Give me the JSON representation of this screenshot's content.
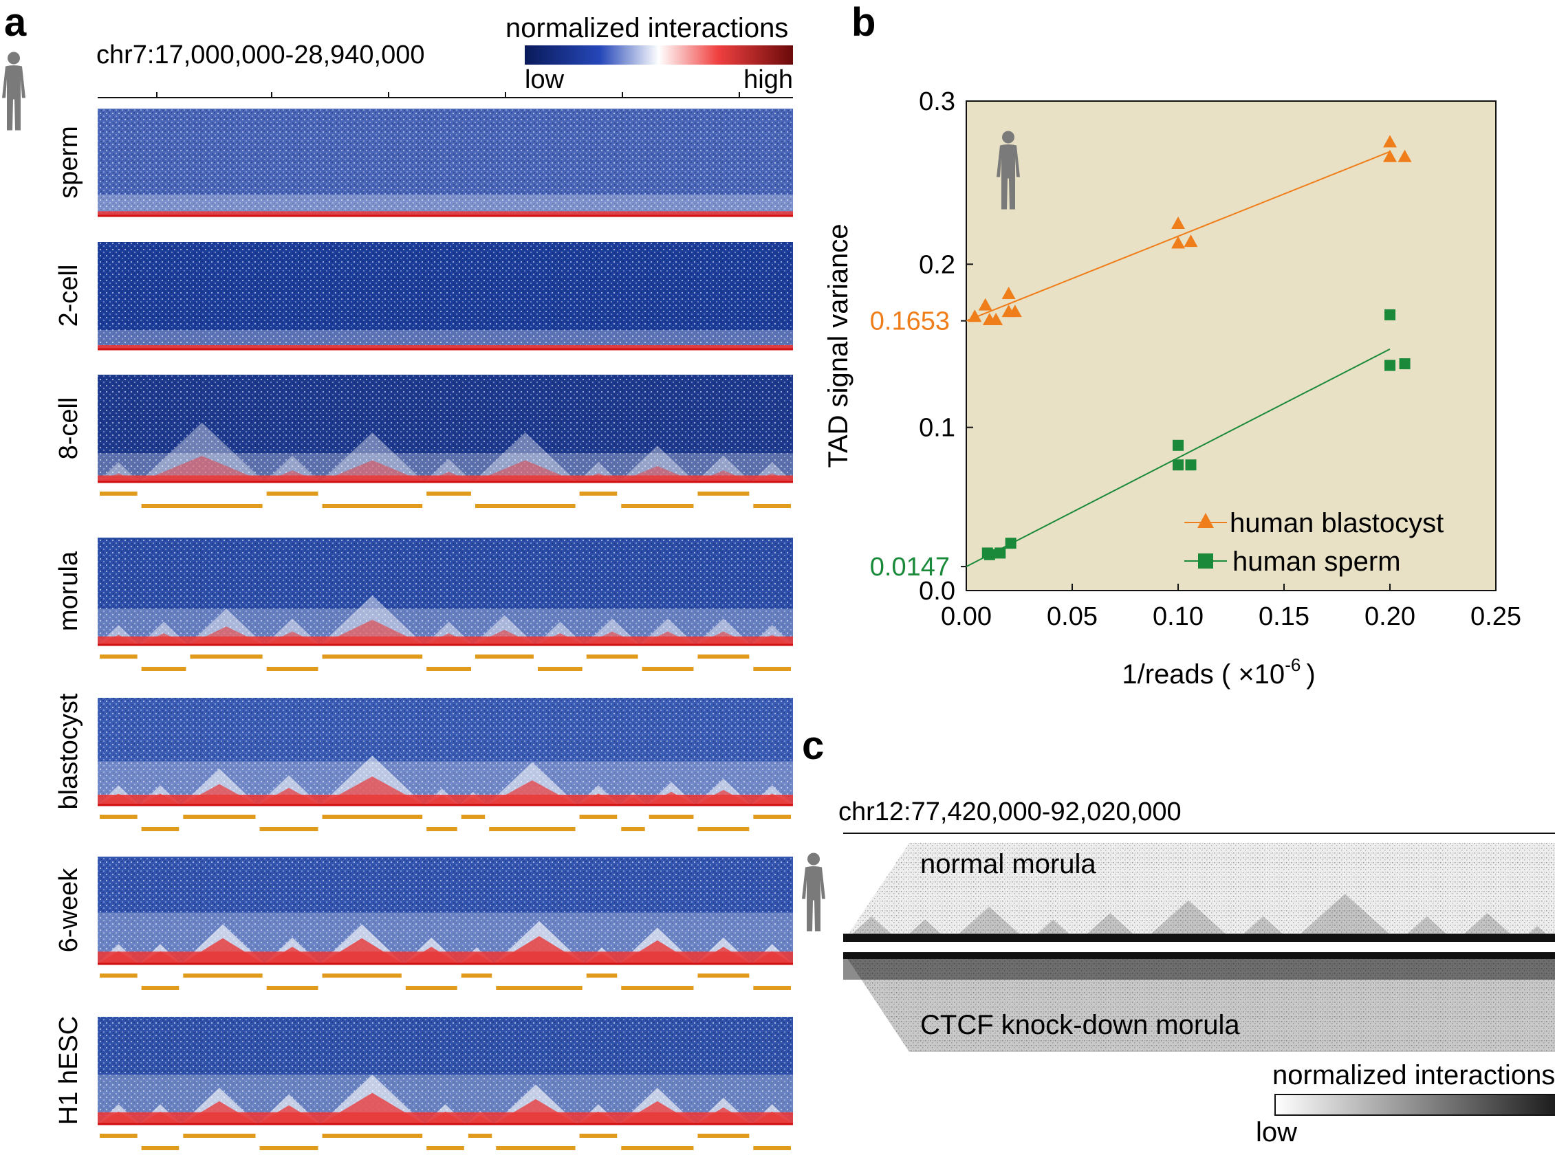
{
  "panel_a": {
    "label": "a",
    "region": "chr7:17,000,000-28,940,000",
    "colorbar": {
      "title": "normalized interactions",
      "low": "low",
      "high": "high"
    },
    "tracks": [
      {
        "name": "sperm",
        "tad_strength": 0.05,
        "domains": [],
        "colors": {
          "bg": "#4a66b8",
          "base": "#e83a3a"
        }
      },
      {
        "name": "2-cell",
        "tad_strength": 0.0,
        "domains": [],
        "colors": {
          "bg": "#1c3d9a",
          "base": "#e83a3a"
        }
      },
      {
        "name": "8-cell",
        "tad_strength": 0.25,
        "domains": [
          [
            0.0,
            0.06
          ],
          [
            0.06,
            0.24
          ],
          [
            0.24,
            0.32
          ],
          [
            0.32,
            0.47
          ],
          [
            0.47,
            0.54
          ],
          [
            0.54,
            0.69
          ],
          [
            0.69,
            0.75
          ],
          [
            0.75,
            0.86
          ],
          [
            0.86,
            0.94
          ],
          [
            0.94,
            1.0
          ]
        ],
        "colors": {
          "bg": "#1e3a8e",
          "base": "#e83a3a"
        }
      },
      {
        "name": "morula",
        "tad_strength": 0.45,
        "domains": [
          [
            0.0,
            0.06
          ],
          [
            0.06,
            0.13
          ],
          [
            0.13,
            0.24
          ],
          [
            0.24,
            0.32
          ],
          [
            0.32,
            0.47
          ],
          [
            0.47,
            0.54
          ],
          [
            0.54,
            0.63
          ],
          [
            0.63,
            0.7
          ],
          [
            0.7,
            0.78
          ],
          [
            0.78,
            0.86
          ],
          [
            0.86,
            0.94
          ],
          [
            0.94,
            1.0
          ]
        ],
        "colors": {
          "bg": "#2c4ea8",
          "base": "#e83a3a"
        }
      },
      {
        "name": "blastocyst",
        "tad_strength": 0.65,
        "domains": [
          [
            0.0,
            0.06
          ],
          [
            0.06,
            0.12
          ],
          [
            0.12,
            0.23
          ],
          [
            0.23,
            0.32
          ],
          [
            0.32,
            0.47
          ],
          [
            0.47,
            0.52
          ],
          [
            0.52,
            0.56
          ],
          [
            0.56,
            0.69
          ],
          [
            0.69,
            0.75
          ],
          [
            0.75,
            0.79
          ],
          [
            0.79,
            0.86
          ],
          [
            0.86,
            0.94
          ],
          [
            0.94,
            1.0
          ]
        ],
        "colors": {
          "bg": "#3b5cb5",
          "base": "#e83a3a"
        }
      },
      {
        "name": "6-week",
        "tad_strength": 0.85,
        "domains": [
          [
            0.0,
            0.06
          ],
          [
            0.06,
            0.12
          ],
          [
            0.12,
            0.24
          ],
          [
            0.24,
            0.32
          ],
          [
            0.32,
            0.44
          ],
          [
            0.44,
            0.52
          ],
          [
            0.52,
            0.57
          ],
          [
            0.57,
            0.7
          ],
          [
            0.7,
            0.75
          ],
          [
            0.75,
            0.86
          ],
          [
            0.86,
            0.94
          ],
          [
            0.94,
            1.0
          ]
        ],
        "colors": {
          "bg": "#3355b0",
          "base": "#e83a3a"
        }
      },
      {
        "name": "H1 hESC",
        "tad_strength": 0.8,
        "domains": [
          [
            0.0,
            0.06
          ],
          [
            0.06,
            0.12
          ],
          [
            0.12,
            0.23
          ],
          [
            0.23,
            0.32
          ],
          [
            0.32,
            0.47
          ],
          [
            0.47,
            0.53
          ],
          [
            0.53,
            0.57
          ],
          [
            0.57,
            0.69
          ],
          [
            0.69,
            0.75
          ],
          [
            0.75,
            0.86
          ],
          [
            0.86,
            0.94
          ],
          [
            0.94,
            1.0
          ]
        ],
        "colors": {
          "bg": "#3052ab",
          "base": "#e83a3a"
        }
      }
    ],
    "tad_bar_color": "#e09a1c"
  },
  "panel_b": {
    "label": "b",
    "chart_data": {
      "type": "scatter",
      "xlabel": "1/reads ( ×10",
      "xlabel_exp": "-6",
      "xlabel_tail": ")",
      "ylabel": "TAD signal variance",
      "xlim": [
        0.0,
        0.25
      ],
      "ylim": [
        0.0,
        0.3
      ],
      "xticks": [
        "0.00",
        "0.05",
        "0.10",
        "0.15",
        "0.20",
        "0.25"
      ],
      "yticks": [
        "0.0",
        "0.1",
        "0.2",
        "0.3"
      ],
      "background": "#e8e1c5",
      "series": [
        {
          "name": "human blastocyst",
          "marker": "triangle",
          "color": "#ef7d1a",
          "intercept_label": "0.1653",
          "intercept": 0.1653,
          "fit_end": [
            0.2,
            0.269
          ],
          "x": [
            0.004,
            0.009,
            0.011,
            0.014,
            0.02,
            0.02,
            0.023,
            0.1,
            0.1,
            0.106,
            0.2,
            0.2,
            0.207
          ],
          "y": [
            0.168,
            0.175,
            0.166,
            0.166,
            0.182,
            0.171,
            0.171,
            0.225,
            0.213,
            0.214,
            0.275,
            0.266,
            0.266
          ]
        },
        {
          "name": "human sperm",
          "marker": "square",
          "color": "#1a8a3a",
          "intercept_label": "0.0147",
          "intercept": 0.0147,
          "fit_end": [
            0.2,
            0.148
          ],
          "x": [
            0.01,
            0.011,
            0.016,
            0.021,
            0.1,
            0.1,
            0.106,
            0.2,
            0.2,
            0.207
          ],
          "y": [
            0.023,
            0.022,
            0.023,
            0.029,
            0.089,
            0.077,
            0.077,
            0.169,
            0.138,
            0.139
          ]
        }
      ]
    }
  },
  "panel_c": {
    "label": "c",
    "region": "chr12:77,420,000-92,020,000",
    "top_track": "normal morula",
    "bottom_track": "CTCF knock-down morula",
    "colorbar": {
      "title": "normalized interactions",
      "low": "low"
    },
    "domains": [
      [
        0.0,
        0.08
      ],
      [
        0.08,
        0.15
      ],
      [
        0.15,
        0.26
      ],
      [
        0.26,
        0.33
      ],
      [
        0.33,
        0.42
      ],
      [
        0.42,
        0.55
      ],
      [
        0.55,
        0.63
      ],
      [
        0.63,
        0.78
      ],
      [
        0.78,
        0.86
      ],
      [
        0.86,
        0.95
      ],
      [
        0.95,
        1.0
      ]
    ]
  }
}
